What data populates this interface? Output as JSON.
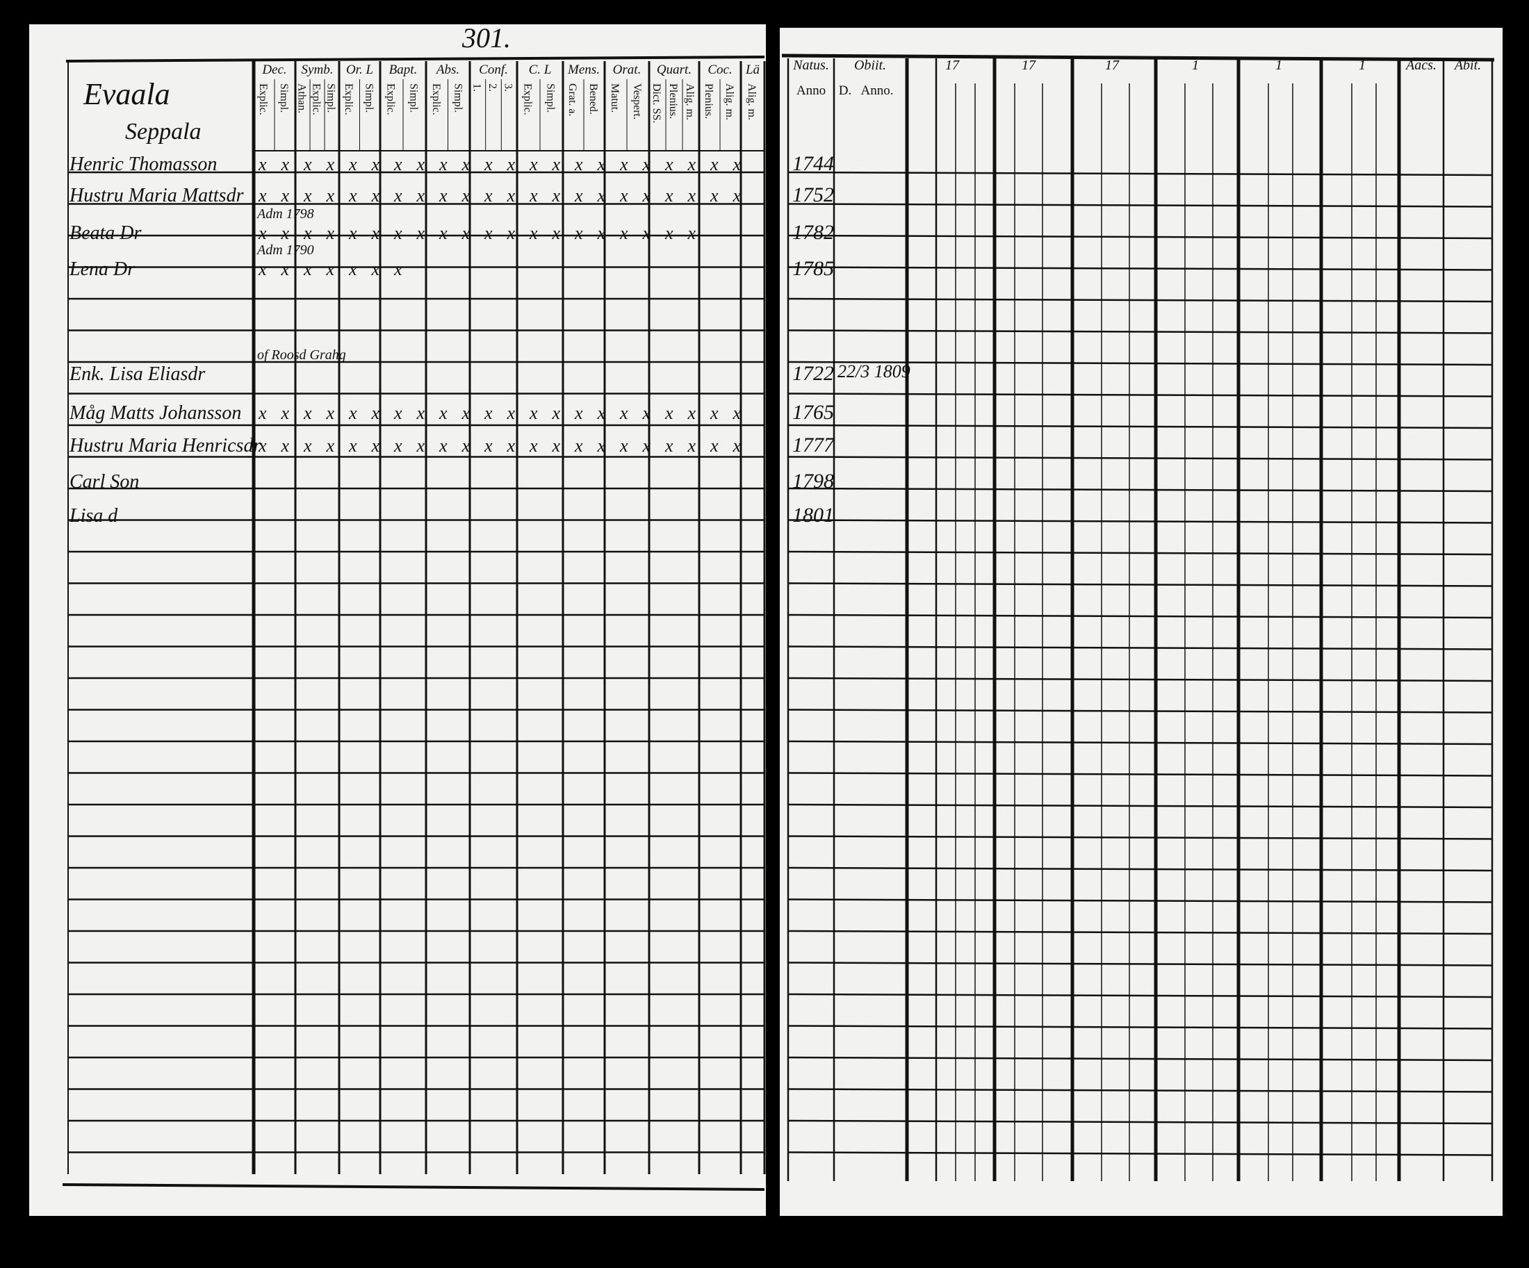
{
  "page_number": "301.",
  "place": [
    "Evaala",
    "Seppala"
  ],
  "left_headers": [
    {
      "title": "Dec.",
      "sub": [
        "Explic.",
        "Simpl."
      ]
    },
    {
      "title": "Symb.",
      "sub": [
        "Athan.",
        "Explic.",
        "Simpl."
      ]
    },
    {
      "title": "Or. L",
      "sub": [
        "Explic.",
        "Simpl."
      ]
    },
    {
      "title": "Bapt.",
      "sub": [
        "Explic.",
        "Simpl."
      ]
    },
    {
      "title": "Abs.",
      "sub": [
        "Explic.",
        "Simpl."
      ]
    },
    {
      "title": "Conf.",
      "sub": [
        "1.",
        "2.",
        "3."
      ]
    },
    {
      "title": "C. L",
      "sub": [
        "Explic.",
        "Simpl."
      ]
    },
    {
      "title": "Mens.",
      "sub": [
        "Grat. a.",
        "Bened."
      ]
    },
    {
      "title": "Orat.",
      "sub": [
        "Matut.",
        "Vespert."
      ]
    },
    {
      "title": "Quart.",
      "sub": [
        "Dict. SS.",
        "Plenius.",
        "Alig. m."
      ]
    },
    {
      "title": "Coc.",
      "sub": [
        "Plenius.",
        "Alig. m."
      ]
    },
    {
      "title": "Lä",
      "sub": [
        "Alig. m."
      ]
    }
  ],
  "right_headers": [
    "Natus.",
    "Obiit.",
    "17",
    "17",
    "17",
    "1",
    "1",
    "1",
    "Aacs.",
    "Abit."
  ],
  "right_subheaders": [
    "Anno",
    "D.",
    "Anno."
  ],
  "persons": [
    {
      "name": "Henric Thomasson",
      "born": "1744",
      "marks": [
        "x",
        "x",
        "x",
        "x",
        "x",
        "x",
        "x",
        "x",
        "x",
        "x",
        "x",
        "x",
        "x",
        "x",
        "x",
        "x",
        "x",
        "x",
        "x",
        "x",
        "x",
        "x"
      ]
    },
    {
      "name": "Hustru Maria Mattsdr",
      "born": "1752",
      "marks": [
        "x",
        "x",
        "x",
        "x",
        "x",
        "x",
        "x",
        "x",
        "x",
        "x",
        "x",
        "x",
        "x",
        "x",
        "x",
        "x",
        "x",
        "x",
        "x",
        "x",
        "x",
        "x"
      ]
    },
    {
      "name": "Beata Dr",
      "born": "1782",
      "note": "Adm 1798",
      "marks": [
        "x",
        "x",
        "x",
        "x",
        "x",
        "x",
        "x",
        "x",
        "x",
        "x",
        "x",
        "x",
        "x",
        "x",
        "x",
        "x",
        "x",
        "x",
        "x",
        "x"
      ]
    },
    {
      "name": "Lena Dr",
      "born": "1785",
      "note": "Adm 1790",
      "marks": [
        "x",
        "x",
        "x",
        "x",
        "x",
        "x",
        "x"
      ]
    },
    {
      "name": "Enk. Lisa Eliasdr",
      "born": "1722",
      "died": "22/3 1809",
      "note": "of Roosd Grahg"
    },
    {
      "name": "Måg Matts Johansson",
      "born": "1765",
      "marks": [
        "x",
        "x",
        "x",
        "x",
        "x",
        "x",
        "x",
        "x",
        "x",
        "x",
        "x",
        "x",
        "x",
        "x",
        "x",
        "x",
        "x",
        "x",
        "x",
        "x",
        "x",
        "x"
      ]
    },
    {
      "name": "Hustru Maria Henricsdr",
      "born": "1777",
      "marks": [
        "x",
        "x",
        "x",
        "x",
        "x",
        "x",
        "x",
        "x",
        "x",
        "x",
        "x",
        "x",
        "x",
        "x",
        "x",
        "x",
        "x",
        "x",
        "x",
        "x",
        "x",
        "x"
      ]
    },
    {
      "name": "Carl Son",
      "born": "1798"
    },
    {
      "name": "Lisa d",
      "born": "1801"
    }
  ]
}
